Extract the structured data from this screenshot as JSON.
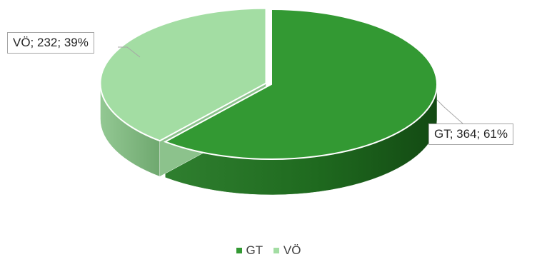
{
  "chart_data": {
    "type": "pie",
    "three_d": true,
    "title": "",
    "slices": [
      {
        "name": "GT",
        "value": 364,
        "percent": 61,
        "label": "GT; 364; 61%",
        "color": "#339933",
        "side_color": "#1e6e1e",
        "exploded": false
      },
      {
        "name": "VÖ",
        "value": 232,
        "percent": 39,
        "label": "VÖ; 232; 39%",
        "color": "#a3dda3",
        "side_color": "#7fb87f",
        "exploded": true
      }
    ],
    "legend": {
      "position": "bottom",
      "entries": [
        "GT",
        "VÖ"
      ]
    }
  }
}
